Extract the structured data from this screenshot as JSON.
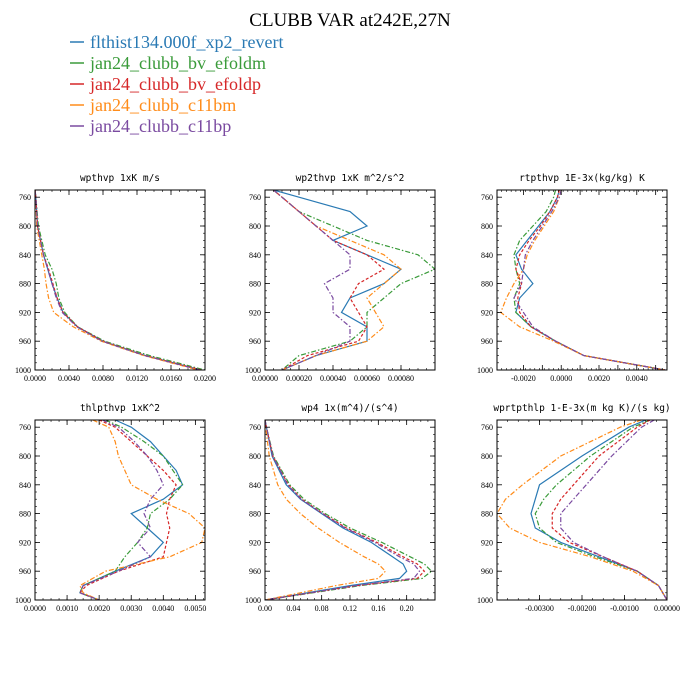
{
  "figure_title": "CLUBB VAR at242E,27N",
  "legend": [
    {
      "name": "flthist134.000f_xp2_revert",
      "color": "#2a7ab4",
      "dash": "solid"
    },
    {
      "name": "jan24_clubb_bv_efoldm",
      "color": "#3a9b3a",
      "dash": "dashdot"
    },
    {
      "name": "jan24_clubb_bv_efoldp",
      "color": "#d62728",
      "dash": "dash"
    },
    {
      "name": "jan24_clubb_c11bm",
      "color": "#ff8c1a",
      "dash": "dashdot"
    },
    {
      "name": "jan24_clubb_c11bp",
      "color": "#7a4aa0",
      "dash": "dashdot"
    }
  ],
  "chart_data": [
    {
      "type": "line",
      "title": "wpthvp  1xK m/s",
      "xlim": [
        0,
        0.02
      ],
      "ylim": [
        1000,
        750
      ],
      "xticks": [
        0,
        0.004,
        0.008,
        0.012,
        0.016,
        0.02
      ],
      "xtick_labels": [
        "0.0000",
        "0.0040",
        "0.0080",
        "0.0120",
        "0.0160",
        "0.0200"
      ],
      "yticks": [
        760,
        800,
        840,
        880,
        920,
        960,
        1000
      ],
      "y": [
        750,
        760,
        800,
        840,
        860,
        880,
        900,
        920,
        940,
        960,
        980,
        1000
      ],
      "series": [
        {
          "values": [
            0.0,
            0.0001,
            0.0003,
            0.001,
            0.0015,
            0.002,
            0.0026,
            0.0033,
            0.005,
            0.008,
            0.013,
            0.0195
          ]
        },
        {
          "values": [
            0.0,
            0.0001,
            0.0004,
            0.0012,
            0.002,
            0.0025,
            0.0028,
            0.0035,
            0.005,
            0.0082,
            0.0135,
            0.02
          ]
        },
        {
          "values": [
            0.0,
            0.0001,
            0.0003,
            0.001,
            0.0016,
            0.0021,
            0.0026,
            0.0033,
            0.005,
            0.008,
            0.013,
            0.0196
          ]
        },
        {
          "values": [
            0.0,
            0.0001,
            0.0002,
            0.0008,
            0.0011,
            0.0013,
            0.0016,
            0.0022,
            0.0045,
            0.0078,
            0.0128,
            0.0192
          ]
        },
        {
          "values": [
            0.0,
            0.0001,
            0.0003,
            0.001,
            0.0015,
            0.002,
            0.0025,
            0.0032,
            0.0049,
            0.0079,
            0.0129,
            0.0194
          ]
        }
      ]
    },
    {
      "type": "line",
      "title": "wp2thvp  1xK m^2/s^2",
      "xlim": [
        0,
        0.001
      ],
      "ylim": [
        1000,
        750
      ],
      "xticks": [
        0,
        0.0002,
        0.0004,
        0.0006,
        0.0008
      ],
      "xtick_labels": [
        "0.00000",
        "0.00020",
        "0.00040",
        "0.00060",
        "0.00080"
      ],
      "yticks": [
        760,
        800,
        840,
        880,
        920,
        960,
        1000
      ],
      "y": [
        750,
        760,
        780,
        800,
        820,
        840,
        860,
        880,
        900,
        920,
        940,
        960,
        980,
        1000
      ],
      "series": [
        {
          "values": [
            5e-05,
            0.0002,
            0.0005,
            0.0006,
            0.0004,
            0.0006,
            0.0008,
            0.0007,
            0.0005,
            0.00045,
            0.0006,
            0.0006,
            0.0003,
            0.0001
          ]
        },
        {
          "values": [
            5e-05,
            0.0001,
            0.0002,
            0.0004,
            0.0006,
            0.0009,
            0.001,
            0.0008,
            0.0007,
            0.0006,
            0.0006,
            0.0005,
            0.0002,
            0.0001
          ]
        },
        {
          "values": [
            5e-05,
            0.0001,
            0.0002,
            0.0003,
            0.0004,
            0.0006,
            0.0007,
            0.00055,
            0.0005,
            0.00055,
            0.0006,
            0.00055,
            0.00025,
            0.0001
          ]
        },
        {
          "values": [
            5e-05,
            0.0001,
            0.0002,
            0.0003,
            0.0005,
            0.0007,
            0.0008,
            0.0007,
            0.0006,
            0.00065,
            0.0007,
            0.0006,
            0.0003,
            0.0001
          ]
        },
        {
          "values": [
            5e-05,
            0.0001,
            0.0002,
            0.0003,
            0.0004,
            0.0005,
            0.0005,
            0.00035,
            0.0004,
            0.0004,
            0.0005,
            0.0005,
            0.0003,
            0.0001
          ]
        }
      ]
    },
    {
      "type": "line",
      "title": "rtpthvp  1E-3x(kg/kg) K",
      "xlim": [
        -0.0034,
        0.0056
      ],
      "ylim": [
        1000,
        750
      ],
      "xticks": [
        -0.002,
        -0.001,
        0,
        0.001,
        0.002,
        0.003,
        0.004,
        0.005
      ],
      "xtick_labels": [
        "-0.0020",
        "",
        "0.0000",
        "",
        "0.0020",
        "",
        "0.0040",
        ""
      ],
      "yticks": [
        760,
        800,
        840,
        880,
        920,
        960,
        1000
      ],
      "y": [
        750,
        760,
        780,
        800,
        820,
        840,
        860,
        880,
        900,
        920,
        940,
        960,
        980,
        1000
      ],
      "series": [
        {
          "values": [
            -0.0001,
            -0.0002,
            -0.0006,
            -0.0012,
            -0.0018,
            -0.0024,
            -0.0021,
            -0.0015,
            -0.0022,
            -0.0024,
            -0.0016,
            -0.0003,
            0.0012,
            0.0055
          ]
        },
        {
          "values": [
            -0.0003,
            -0.0004,
            -0.0008,
            -0.0015,
            -0.0022,
            -0.0025,
            -0.0024,
            -0.0022,
            -0.0025,
            -0.0024,
            -0.0016,
            -0.0003,
            0.0012,
            0.0055
          ]
        },
        {
          "values": [
            -0.0001,
            -0.0002,
            -0.0006,
            -0.0011,
            -0.0017,
            -0.0022,
            -0.0024,
            -0.0021,
            -0.0023,
            -0.0022,
            -0.0016,
            -0.0003,
            0.0012,
            0.0055
          ]
        },
        {
          "values": [
            0.0,
            -0.0001,
            -0.0004,
            -0.0009,
            -0.0014,
            -0.0018,
            -0.002,
            -0.0025,
            -0.0029,
            -0.0032,
            -0.0022,
            -0.0004,
            0.0012,
            0.0055
          ]
        },
        {
          "values": [
            0.0,
            -0.0001,
            -0.0005,
            -0.001,
            -0.0015,
            -0.0019,
            -0.002,
            -0.0021,
            -0.0025,
            -0.002,
            -0.0015,
            -0.0003,
            0.0012,
            0.0055
          ]
        }
      ]
    },
    {
      "type": "line",
      "title": "thlpthvp  1xK^2",
      "xlim": [
        0,
        0.0053
      ],
      "ylim": [
        1000,
        750
      ],
      "xticks": [
        0,
        0.001,
        0.002,
        0.003,
        0.004,
        0.005
      ],
      "xtick_labels": [
        "0.0000",
        "0.0010",
        "0.0020",
        "0.0030",
        "0.0040",
        "0.0050"
      ],
      "yticks": [
        760,
        800,
        840,
        880,
        920,
        960,
        1000
      ],
      "y": [
        750,
        760,
        780,
        800,
        820,
        840,
        860,
        880,
        900,
        920,
        940,
        960,
        980,
        990,
        1000
      ],
      "series": [
        {
          "values": [
            0.0025,
            0.003,
            0.0036,
            0.004,
            0.0044,
            0.0046,
            0.004,
            0.003,
            0.0035,
            0.004,
            0.0036,
            0.0025,
            0.0015,
            0.0014,
            0.002
          ]
        },
        {
          "values": [
            0.0022,
            0.0027,
            0.0034,
            0.004,
            0.0043,
            0.0046,
            0.0042,
            0.0036,
            0.0035,
            0.0032,
            0.0028,
            0.0025,
            0.0015,
            0.0014,
            0.002
          ]
        },
        {
          "values": [
            0.002,
            0.0025,
            0.003,
            0.0035,
            0.004,
            0.0044,
            0.0042,
            0.0041,
            0.0042,
            0.0041,
            0.004,
            0.0026,
            0.0016,
            0.0014,
            0.002
          ]
        },
        {
          "values": [
            0.0018,
            0.0023,
            0.0025,
            0.0026,
            0.0028,
            0.003,
            0.0038,
            0.0048,
            0.0053,
            0.0052,
            0.0042,
            0.0022,
            0.0014,
            0.0015,
            0.002
          ]
        },
        {
          "values": [
            0.0021,
            0.0026,
            0.0031,
            0.0035,
            0.0038,
            0.004,
            0.0036,
            0.0034,
            0.0036,
            0.0032,
            0.0036,
            0.0026,
            0.0015,
            0.0014,
            0.002
          ]
        }
      ]
    },
    {
      "type": "line",
      "title": "wp4  1x(m^4)/(s^4)",
      "xlim": [
        0,
        0.24
      ],
      "ylim": [
        1000,
        750
      ],
      "xticks": [
        0,
        0.04,
        0.08,
        0.12,
        0.16,
        0.2
      ],
      "xtick_labels": [
        "0.00",
        "0.04",
        "0.08",
        "0.12",
        "0.16",
        "0.20"
      ],
      "yticks": [
        760,
        800,
        840,
        880,
        920,
        960,
        1000
      ],
      "y": [
        750,
        760,
        800,
        840,
        860,
        880,
        900,
        920,
        940,
        950,
        960,
        970,
        980,
        1000
      ],
      "series": [
        {
          "values": [
            0.0,
            0.002,
            0.01,
            0.03,
            0.05,
            0.08,
            0.11,
            0.15,
            0.18,
            0.195,
            0.2,
            0.19,
            0.12,
            0.0
          ]
        },
        {
          "values": [
            0.0,
            0.002,
            0.012,
            0.035,
            0.055,
            0.085,
            0.12,
            0.165,
            0.205,
            0.225,
            0.235,
            0.222,
            0.135,
            0.0
          ]
        },
        {
          "values": [
            0.0,
            0.002,
            0.011,
            0.033,
            0.052,
            0.082,
            0.115,
            0.158,
            0.195,
            0.215,
            0.225,
            0.215,
            0.13,
            0.0
          ]
        },
        {
          "values": [
            0.0,
            0.001,
            0.006,
            0.018,
            0.03,
            0.05,
            0.075,
            0.105,
            0.14,
            0.16,
            0.17,
            0.16,
            0.1,
            0.0
          ]
        },
        {
          "values": [
            0.0,
            0.002,
            0.011,
            0.032,
            0.051,
            0.081,
            0.113,
            0.155,
            0.19,
            0.21,
            0.218,
            0.21,
            0.128,
            0.0
          ]
        }
      ]
    },
    {
      "type": "line",
      "title": "wprtpthlp  1-E-3x(m kg K)/(s kg)",
      "xlim": [
        -0.004,
        0
      ],
      "ylim": [
        1000,
        750
      ],
      "xticks": [
        -0.003,
        -0.002,
        -0.001,
        0
      ],
      "xtick_labels": [
        "-0.00300",
        "-0.00200",
        "-0.00100",
        "0.00000"
      ],
      "yticks": [
        760,
        800,
        840,
        880,
        920,
        960,
        1000
      ],
      "y": [
        750,
        760,
        800,
        840,
        860,
        880,
        900,
        920,
        940,
        960,
        980,
        990,
        1000
      ],
      "series": [
        {
          "values": [
            -0.0005,
            -0.0009,
            -0.002,
            -0.003,
            -0.0031,
            -0.0032,
            -0.0031,
            -0.0025,
            -0.0016,
            -0.0007,
            -0.0002,
            -0.0001,
            0.0
          ]
        },
        {
          "values": [
            -0.0004,
            -0.0008,
            -0.0018,
            -0.0026,
            -0.0029,
            -0.0031,
            -0.003,
            -0.0026,
            -0.0017,
            -0.0007,
            -0.0002,
            -0.0001,
            0.0
          ]
        },
        {
          "values": [
            -0.0004,
            -0.0007,
            -0.0016,
            -0.0022,
            -0.0025,
            -0.0027,
            -0.0027,
            -0.0023,
            -0.0015,
            -0.0007,
            -0.0002,
            -0.0001,
            0.0
          ]
        },
        {
          "values": [
            -0.0006,
            -0.0011,
            -0.0025,
            -0.0034,
            -0.0038,
            -0.004,
            -0.0037,
            -0.003,
            -0.0018,
            -0.0008,
            -0.0002,
            -0.0001,
            0.0
          ]
        },
        {
          "values": [
            -0.0003,
            -0.0006,
            -0.0013,
            -0.0019,
            -0.0022,
            -0.0025,
            -0.0025,
            -0.0022,
            -0.0015,
            -0.0007,
            -0.0002,
            -0.0001,
            0.0
          ]
        }
      ]
    }
  ]
}
